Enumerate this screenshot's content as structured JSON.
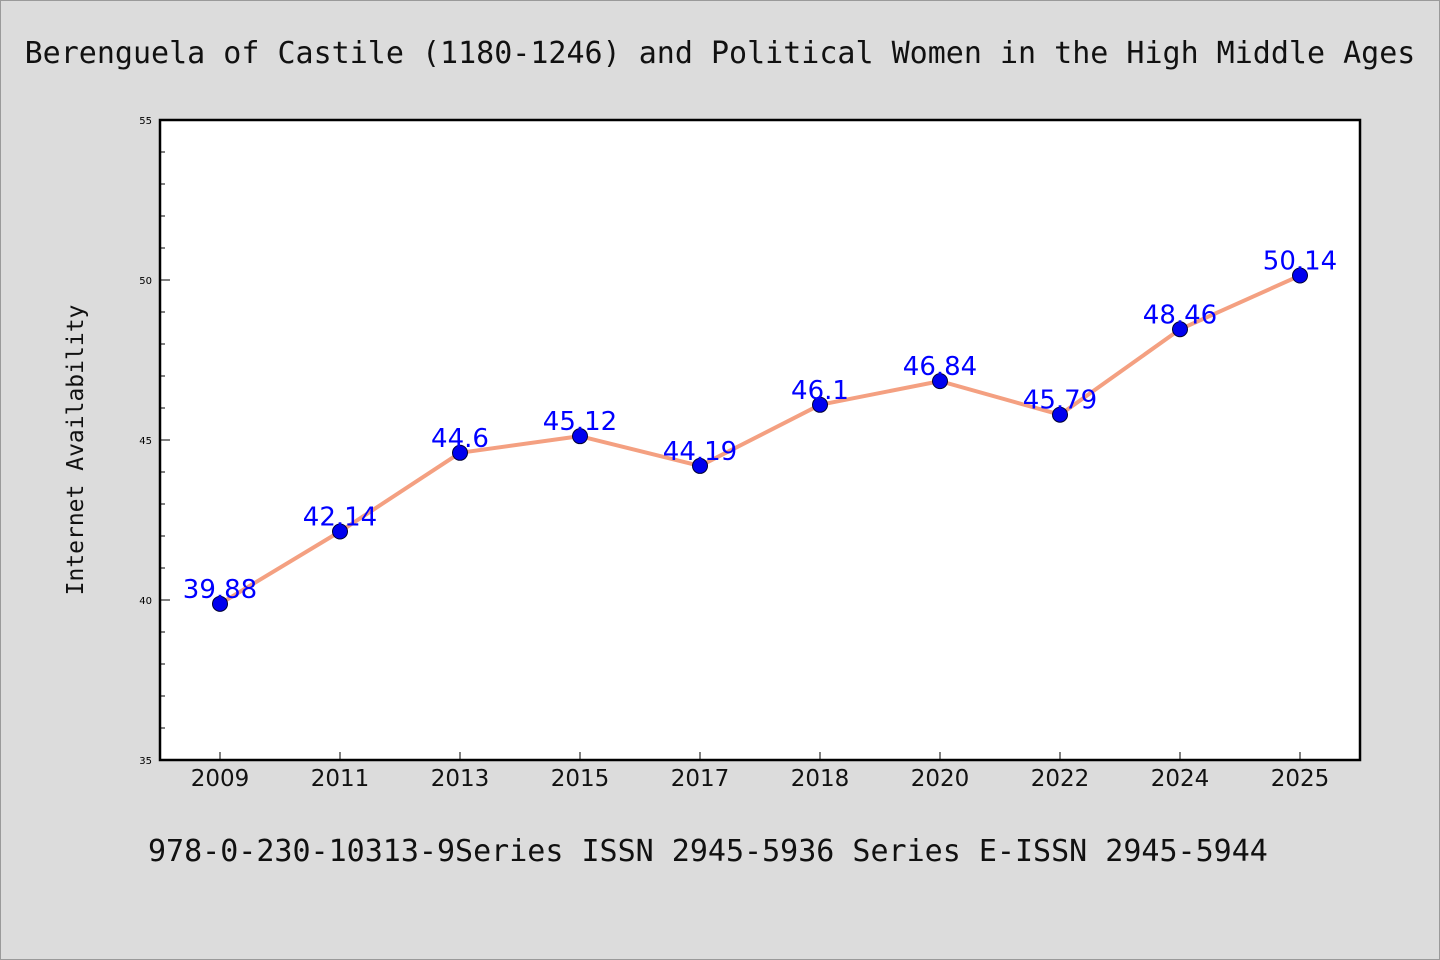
{
  "chart_data": {
    "type": "line",
    "title": "Berenguela of Castile (1180-1246) and Political Women in the High Middle Ages",
    "ylabel": "Internet Availability",
    "xlabel": "",
    "footer": "978-0-230-10313-9Series ISSN 2945-5936 Series E-ISSN 2945-5944",
    "categories": [
      "2009",
      "2011",
      "2013",
      "2015",
      "2017",
      "2018",
      "2020",
      "2022",
      "2024",
      "2025"
    ],
    "values": [
      39.88,
      42.14,
      44.6,
      45.12,
      44.19,
      46.1,
      46.84,
      45.79,
      48.46,
      50.14
    ],
    "data_labels": [
      "39.88",
      "42.14",
      "44.6",
      "45.12",
      "44.19",
      "46.1",
      "46.84",
      "45.79",
      "48.46",
      "50.14"
    ],
    "ylim": [
      35,
      55
    ],
    "yticks": [
      "35",
      "40",
      "45",
      "50",
      "55"
    ],
    "grid": false,
    "colors": {
      "line": "#f4a081",
      "marker": "#0000ee",
      "label": "#0000ff",
      "background": "#dcdcdc",
      "plot_background": "#ffffff"
    }
  }
}
